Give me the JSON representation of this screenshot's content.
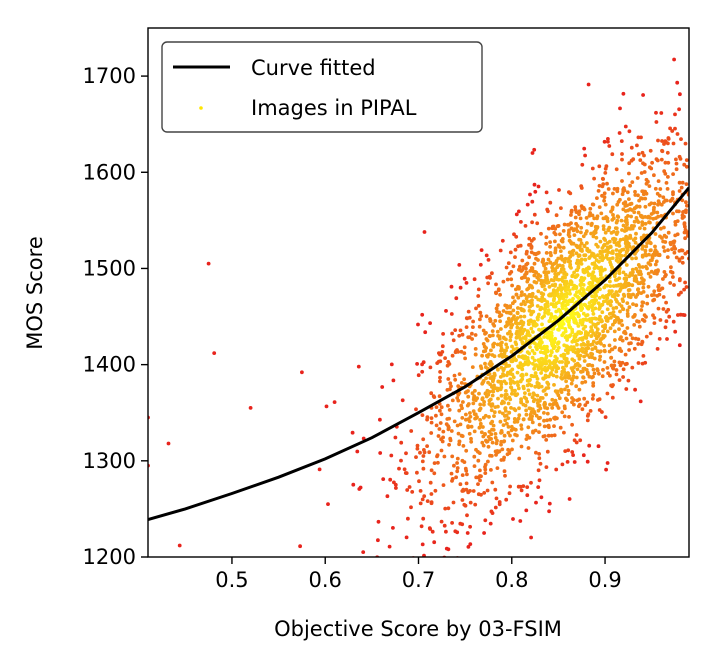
{
  "chart_data": {
    "type": "scatter",
    "title": "",
    "xlabel": "Objective Score by 03-FSIM",
    "ylabel": "MOS Score",
    "xlim": [
      0.41,
      0.99
    ],
    "ylim": [
      1200,
      1750
    ],
    "xticks": [
      "0.5",
      "0.6",
      "0.7",
      "0.8",
      "0.9"
    ],
    "yticks": [
      "1200",
      "1300",
      "1400",
      "1500",
      "1600",
      "1700"
    ],
    "grid": false,
    "legend_position": "top-left",
    "series": [
      {
        "name": "Curve fitted",
        "kind": "line",
        "color": "#000000",
        "x": [
          0.41,
          0.45,
          0.5,
          0.55,
          0.6,
          0.65,
          0.7,
          0.75,
          0.8,
          0.85,
          0.9,
          0.95,
          0.99
        ],
        "y": [
          1239,
          1250,
          1266,
          1283,
          1302,
          1324,
          1350,
          1377,
          1409,
          1446,
          1488,
          1537,
          1584
        ]
      },
      {
        "name": "Images in PIPAL",
        "kind": "scatter",
        "legend_color": "#ffe600",
        "color_low_density": "#e8231c",
        "color_high_density": "#ffff1a",
        "center_x": 0.855,
        "center_y": 1445,
        "spread_x": 0.075,
        "spread_y": 90,
        "point_count": 3000,
        "outliers": [
          {
            "x": 0.41,
            "y": 1345
          },
          {
            "x": 0.41,
            "y": 1295
          },
          {
            "x": 0.432,
            "y": 1318
          },
          {
            "x": 0.444,
            "y": 1212
          },
          {
            "x": 0.475,
            "y": 1505
          },
          {
            "x": 0.481,
            "y": 1412
          },
          {
            "x": 0.52,
            "y": 1355
          },
          {
            "x": 0.575,
            "y": 1392
          },
          {
            "x": 0.603,
            "y": 1255
          },
          {
            "x": 0.61,
            "y": 1361
          },
          {
            "x": 0.636,
            "y": 1398
          }
        ]
      }
    ]
  }
}
